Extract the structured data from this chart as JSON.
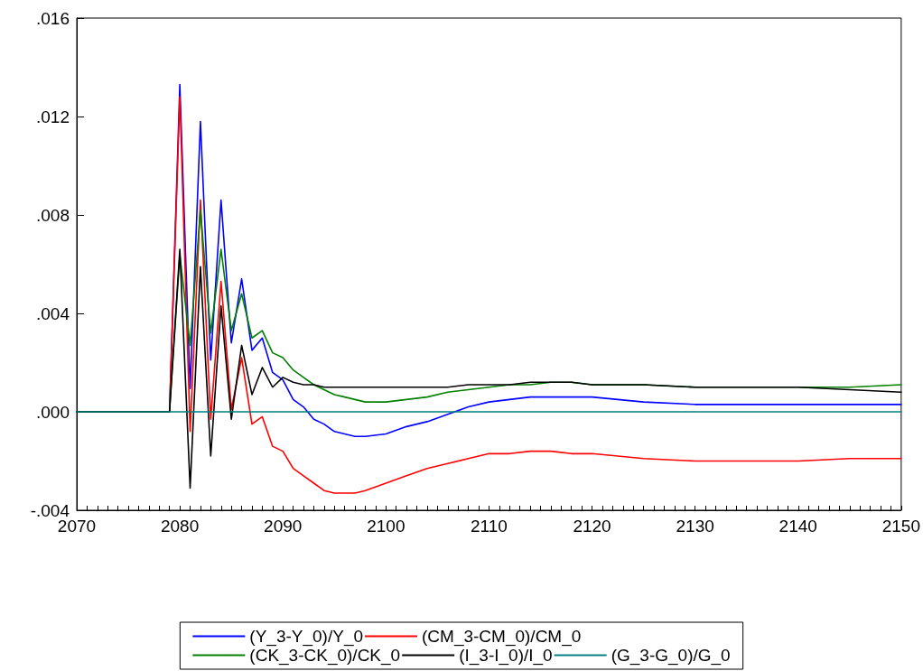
{
  "chart_data": {
    "type": "line",
    "x": [
      2070,
      2079,
      2080,
      2081,
      2082,
      2083,
      2084,
      2085,
      2086,
      2087,
      2088,
      2089,
      2090,
      2091,
      2092,
      2093,
      2094,
      2095,
      2096,
      2097,
      2098,
      2100,
      2102,
      2104,
      2106,
      2108,
      2110,
      2112,
      2114,
      2116,
      2118,
      2120,
      2125,
      2130,
      2135,
      2140,
      2145,
      2150
    ],
    "series": [
      {
        "name": "(Y_3-Y_0)/Y_0",
        "color": "#0000ff",
        "values": [
          0,
          0,
          0.0133,
          0.00095,
          0.0118,
          0.0021,
          0.0086,
          0.0028,
          0.0054,
          0.0025,
          0.003,
          0.0016,
          0.0013,
          0.0005,
          0.0002,
          -0.0003,
          -0.0005,
          -0.0008,
          -0.0009,
          -0.001,
          -0.001,
          -0.0009,
          -0.0006,
          -0.0004,
          -0.0001,
          0.0002,
          0.0004,
          0.0005,
          0.0006,
          0.0006,
          0.0006,
          0.0006,
          0.0004,
          0.0003,
          0.0003,
          0.0003,
          0.0003,
          0.0003
        ]
      },
      {
        "name": "(CM_3-CM_0)/CM_0",
        "color": "#ff0000",
        "values": [
          0,
          0,
          0.0128,
          -0.0008,
          0.0086,
          -0.0003,
          0.0053,
          0.0001,
          0.0022,
          -0.0005,
          -0.0002,
          -0.0014,
          -0.0016,
          -0.0023,
          -0.0026,
          -0.0029,
          -0.0032,
          -0.0033,
          -0.0033,
          -0.0033,
          -0.0032,
          -0.0029,
          -0.0026,
          -0.0023,
          -0.0021,
          -0.0019,
          -0.0017,
          -0.0017,
          -0.0016,
          -0.0016,
          -0.0017,
          -0.0017,
          -0.0019,
          -0.002,
          -0.002,
          -0.002,
          -0.0019,
          -0.0019
        ]
      },
      {
        "name": "(CK_3-CK_0)/CK_0",
        "color": "#008000",
        "values": [
          0,
          0,
          0.0064,
          0.0027,
          0.0082,
          0.0032,
          0.0066,
          0.0033,
          0.0048,
          0.003,
          0.0033,
          0.0024,
          0.0022,
          0.0017,
          0.0014,
          0.0011,
          0.0009,
          0.0007,
          0.0006,
          0.0005,
          0.0004,
          0.0004,
          0.0005,
          0.0006,
          0.0008,
          0.0009,
          0.001,
          0.0011,
          0.0011,
          0.0012,
          0.0012,
          0.0011,
          0.0011,
          0.001,
          0.001,
          0.001,
          0.001,
          0.0011
        ]
      },
      {
        "name": "(I_3-I_0)/I_0",
        "color": "#000000",
        "values": [
          0,
          0,
          0.0066,
          -0.0031,
          0.0059,
          -0.0018,
          0.0043,
          -0.0003,
          0.0027,
          0.0007,
          0.0018,
          0.001,
          0.0014,
          0.0012,
          0.0011,
          0.0011,
          0.001,
          0.001,
          0.001,
          0.001,
          0.001,
          0.001,
          0.001,
          0.001,
          0.001,
          0.0011,
          0.0011,
          0.0011,
          0.0012,
          0.0012,
          0.0012,
          0.0011,
          0.0011,
          0.001,
          0.001,
          0.001,
          0.0009,
          0.0008
        ]
      },
      {
        "name": "(G_3-G_0)/G_0",
        "color": "#008080",
        "values": [
          0,
          0,
          0,
          0,
          0,
          0,
          0,
          0,
          0,
          0,
          0,
          0,
          0,
          0,
          0,
          0,
          0,
          0,
          0,
          0,
          0,
          0,
          0,
          0,
          0,
          0,
          0,
          0,
          0,
          0,
          0,
          0,
          0,
          0,
          0,
          0,
          0,
          0
        ]
      }
    ],
    "xlim": [
      2070,
      2150
    ],
    "xticks": [
      2070,
      {
        "value": 2071,
        "label": null
      },
      {
        "value": 2072,
        "label": null
      },
      {
        "value": 2073,
        "label": null
      },
      {
        "value": 2074,
        "label": null
      },
      {
        "value": 2075,
        "label": null
      },
      {
        "value": 2076,
        "label": null
      },
      {
        "value": 2077,
        "label": null
      },
      {
        "value": 2078,
        "label": null
      },
      {
        "value": 2079,
        "label": null
      },
      2080,
      {
        "value": 2081,
        "label": null
      },
      {
        "value": 2082,
        "label": null
      },
      {
        "value": 2083,
        "label": null
      },
      {
        "value": 2084,
        "label": null
      },
      {
        "value": 2085,
        "label": null
      },
      {
        "value": 2086,
        "label": null
      },
      {
        "value": 2087,
        "label": null
      },
      {
        "value": 2088,
        "label": null
      },
      {
        "value": 2089,
        "label": null
      },
      2090,
      {
        "value": 2091,
        "label": null
      },
      {
        "value": 2092,
        "label": null
      },
      {
        "value": 2093,
        "label": null
      },
      {
        "value": 2094,
        "label": null
      },
      {
        "value": 2095,
        "label": null
      },
      {
        "value": 2096,
        "label": null
      },
      {
        "value": 2097,
        "label": null
      },
      {
        "value": 2098,
        "label": null
      },
      {
        "value": 2099,
        "label": null
      },
      2100,
      {
        "value": 2101,
        "label": null
      },
      {
        "value": 2102,
        "label": null
      },
      {
        "value": 2103,
        "label": null
      },
      {
        "value": 2104,
        "label": null
      },
      {
        "value": 2105,
        "label": null
      },
      {
        "value": 2106,
        "label": null
      },
      {
        "value": 2107,
        "label": null
      },
      {
        "value": 2108,
        "label": null
      },
      {
        "value": 2109,
        "label": null
      },
      2110,
      {
        "value": 2111,
        "label": null
      },
      {
        "value": 2112,
        "label": null
      },
      {
        "value": 2113,
        "label": null
      },
      {
        "value": 2114,
        "label": null
      },
      {
        "value": 2115,
        "label": null
      },
      {
        "value": 2116,
        "label": null
      },
      {
        "value": 2117,
        "label": null
      },
      {
        "value": 2118,
        "label": null
      },
      {
        "value": 2119,
        "label": null
      },
      2120,
      {
        "value": 2121,
        "label": null
      },
      {
        "value": 2122,
        "label": null
      },
      {
        "value": 2123,
        "label": null
      },
      {
        "value": 2124,
        "label": null
      },
      {
        "value": 2125,
        "label": null
      },
      {
        "value": 2126,
        "label": null
      },
      {
        "value": 2127,
        "label": null
      },
      {
        "value": 2128,
        "label": null
      },
      {
        "value": 2129,
        "label": null
      },
      2130,
      {
        "value": 2131,
        "label": null
      },
      {
        "value": 2132,
        "label": null
      },
      {
        "value": 2133,
        "label": null
      },
      {
        "value": 2134,
        "label": null
      },
      {
        "value": 2135,
        "label": null
      },
      {
        "value": 2136,
        "label": null
      },
      {
        "value": 2137,
        "label": null
      },
      {
        "value": 2138,
        "label": null
      },
      {
        "value": 2139,
        "label": null
      },
      2140,
      {
        "value": 2141,
        "label": null
      },
      {
        "value": 2142,
        "label": null
      },
      {
        "value": 2143,
        "label": null
      },
      {
        "value": 2144,
        "label": null
      },
      {
        "value": 2145,
        "label": null
      },
      {
        "value": 2146,
        "label": null
      },
      {
        "value": 2147,
        "label": null
      },
      {
        "value": 2148,
        "label": null
      },
      {
        "value": 2149,
        "label": null
      },
      2150
    ],
    "ylim": [
      -0.004,
      0.016
    ],
    "yticks": [
      {
        "value": -0.004,
        "label": "-.004"
      },
      {
        "value": 0,
        "label": ".000"
      },
      {
        "value": 0.004,
        "label": ".004"
      },
      {
        "value": 0.008,
        "label": ".008"
      },
      {
        "value": 0.012,
        "label": ".012"
      },
      {
        "value": 0.016,
        "label": ".016"
      }
    ],
    "legend": "bottom",
    "grid": false,
    "marker": "none",
    "line_style": "solid"
  }
}
